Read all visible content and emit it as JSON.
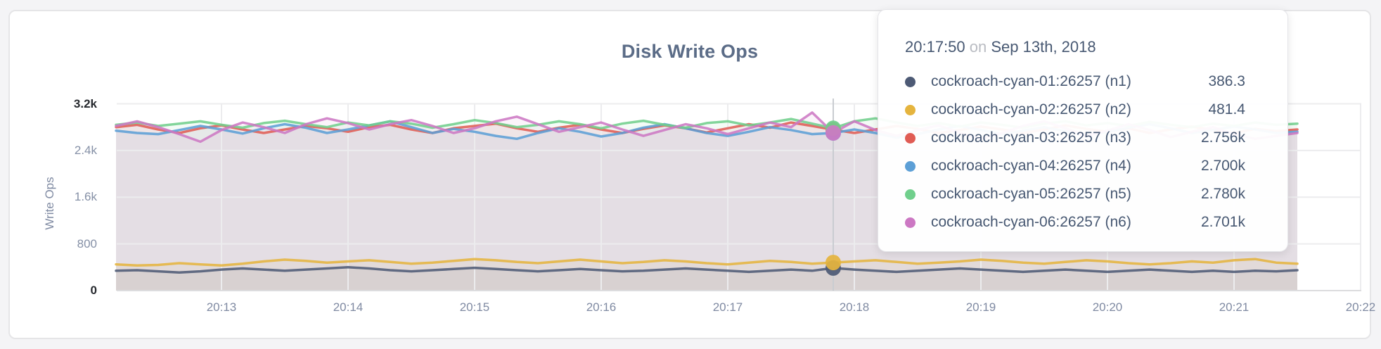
{
  "card": {
    "title": "Disk Write Ops"
  },
  "tooltip": {
    "time": "20:17:50",
    "on_word": "on",
    "date": "Sep 13th, 2018",
    "rows": [
      {
        "name": "cockroach-cyan-01:26257 (n1)",
        "value": "386.3",
        "color": "#4d5a75"
      },
      {
        "name": "cockroach-cyan-02:26257 (n2)",
        "value": "481.4",
        "color": "#e5b43e"
      },
      {
        "name": "cockroach-cyan-03:26257 (n3)",
        "value": "2.756k",
        "color": "#e05c54"
      },
      {
        "name": "cockroach-cyan-04:26257 (n4)",
        "value": "2.700k",
        "color": "#5c9fd6"
      },
      {
        "name": "cockroach-cyan-05:26257 (n5)",
        "value": "2.780k",
        "color": "#70cf8c"
      },
      {
        "name": "cockroach-cyan-06:26257 (n6)",
        "value": "2.701k",
        "color": "#cc78c3"
      }
    ]
  },
  "chart_data": {
    "type": "line",
    "title": "Disk Write Ops",
    "ylabel": "Write Ops",
    "ylim": [
      0,
      3200
    ],
    "grid": true,
    "legend_position": "tooltip-overlay",
    "x_interval_seconds": 10,
    "hover_index": 34,
    "hover_time": "20:17:50",
    "y_ticks": [
      {
        "label": "3.2k",
        "value": 3200,
        "emph": true
      },
      {
        "label": "2.4k",
        "value": 2400,
        "emph": false
      },
      {
        "label": "1.6k",
        "value": 1600,
        "emph": false
      },
      {
        "label": "800",
        "value": 800,
        "emph": false
      },
      {
        "label": "0",
        "value": 0,
        "emph": true
      }
    ],
    "x_ticks": [
      "20:13",
      "20:14",
      "20:15",
      "20:16",
      "20:17",
      "20:18",
      "20:19",
      "20:20",
      "20:21",
      "20:22"
    ],
    "series": [
      {
        "name": "cockroach-cyan-01:26257 (n1)",
        "color": "#4d5a75",
        "hover_value": 386.3,
        "values": [
          340,
          350,
          330,
          310,
          330,
          360,
          380,
          360,
          340,
          360,
          380,
          400,
          380,
          350,
          330,
          350,
          370,
          390,
          370,
          350,
          330,
          350,
          370,
          350,
          330,
          340,
          360,
          380,
          360,
          340,
          320,
          340,
          360,
          340,
          386.3,
          360,
          340,
          320,
          340,
          360,
          380,
          360,
          340,
          320,
          340,
          360,
          340,
          320,
          340,
          360,
          340,
          320,
          340,
          320,
          340,
          330,
          350
        ]
      },
      {
        "name": "cockroach-cyan-02:26257 (n2)",
        "color": "#e5b43e",
        "hover_value": 481.4,
        "values": [
          450,
          430,
          440,
          470,
          450,
          430,
          460,
          500,
          530,
          510,
          480,
          500,
          520,
          490,
          460,
          480,
          510,
          540,
          520,
          490,
          470,
          500,
          530,
          500,
          470,
          490,
          520,
          500,
          470,
          450,
          480,
          510,
          490,
          460,
          481.4,
          500,
          520,
          490,
          460,
          480,
          500,
          530,
          510,
          480,
          460,
          490,
          520,
          500,
          470,
          450,
          470,
          500,
          480,
          520,
          540,
          480,
          460
        ]
      },
      {
        "name": "cockroach-cyan-03:26257 (n3)",
        "color": "#e05c54",
        "hover_value": 2756,
        "values": [
          2800,
          2840,
          2760,
          2700,
          2780,
          2830,
          2760,
          2700,
          2760,
          2820,
          2780,
          2720,
          2800,
          2840,
          2760,
          2700,
          2780,
          2820,
          2860,
          2780,
          2720,
          2790,
          2840,
          2760,
          2700,
          2770,
          2830,
          2780,
          2710,
          2780,
          2850,
          2790,
          2880,
          2820,
          2756,
          2700,
          2760,
          2820,
          2770,
          2700,
          2750,
          2810,
          2760,
          2700,
          2760,
          2830,
          2770,
          2720,
          2780,
          2700,
          2760,
          2810,
          2750,
          2700,
          2770,
          2730,
          2760
        ]
      },
      {
        "name": "cockroach-cyan-04:26257 (n4)",
        "color": "#5c9fd6",
        "hover_value": 2700,
        "values": [
          2740,
          2700,
          2680,
          2750,
          2820,
          2760,
          2690,
          2780,
          2850,
          2790,
          2700,
          2760,
          2830,
          2900,
          2800,
          2700,
          2770,
          2720,
          2650,
          2600,
          2700,
          2780,
          2720,
          2640,
          2700,
          2790,
          2850,
          2780,
          2700,
          2650,
          2720,
          2800,
          2750,
          2680,
          2700,
          2760,
          2700,
          2620,
          2680,
          2760,
          2820,
          2750,
          2680,
          2740,
          2800,
          2730,
          2660,
          2720,
          2790,
          2850,
          2780,
          2700,
          2750,
          2810,
          2760,
          2700,
          2720
        ]
      },
      {
        "name": "cockroach-cyan-05:26257 (n5)",
        "color": "#70cf8c",
        "hover_value": 2780,
        "values": [
          2840,
          2880,
          2820,
          2860,
          2900,
          2840,
          2790,
          2870,
          2910,
          2850,
          2800,
          2880,
          2830,
          2900,
          2860,
          2790,
          2850,
          2920,
          2870,
          2800,
          2840,
          2900,
          2850,
          2780,
          2860,
          2910,
          2840,
          2790,
          2870,
          2900,
          2830,
          2880,
          2940,
          2860,
          2780,
          2900,
          2950,
          2880,
          2820,
          2870,
          2810,
          2880,
          2840,
          2790,
          2860,
          2900,
          2830,
          2870,
          2820,
          2890,
          2840,
          2800,
          2860,
          2820,
          2880,
          2840,
          2860
        ]
      },
      {
        "name": "cockroach-cyan-06:26257 (n6)",
        "color": "#cc78c3",
        "hover_value": 2701,
        "values": [
          2820,
          2900,
          2800,
          2680,
          2550,
          2750,
          2880,
          2800,
          2700,
          2850,
          2950,
          2870,
          2760,
          2850,
          2920,
          2820,
          2700,
          2780,
          2900,
          2980,
          2850,
          2720,
          2800,
          2880,
          2760,
          2650,
          2750,
          2850,
          2780,
          2680,
          2780,
          2880,
          2800,
          3050,
          2701,
          2900,
          2750,
          2650,
          2750,
          2830,
          2700,
          2600,
          2700,
          2820,
          2900,
          2780,
          2650,
          2740,
          2850,
          2750,
          2630,
          2720,
          2800,
          2680,
          2600,
          2650,
          2700
        ]
      }
    ]
  }
}
